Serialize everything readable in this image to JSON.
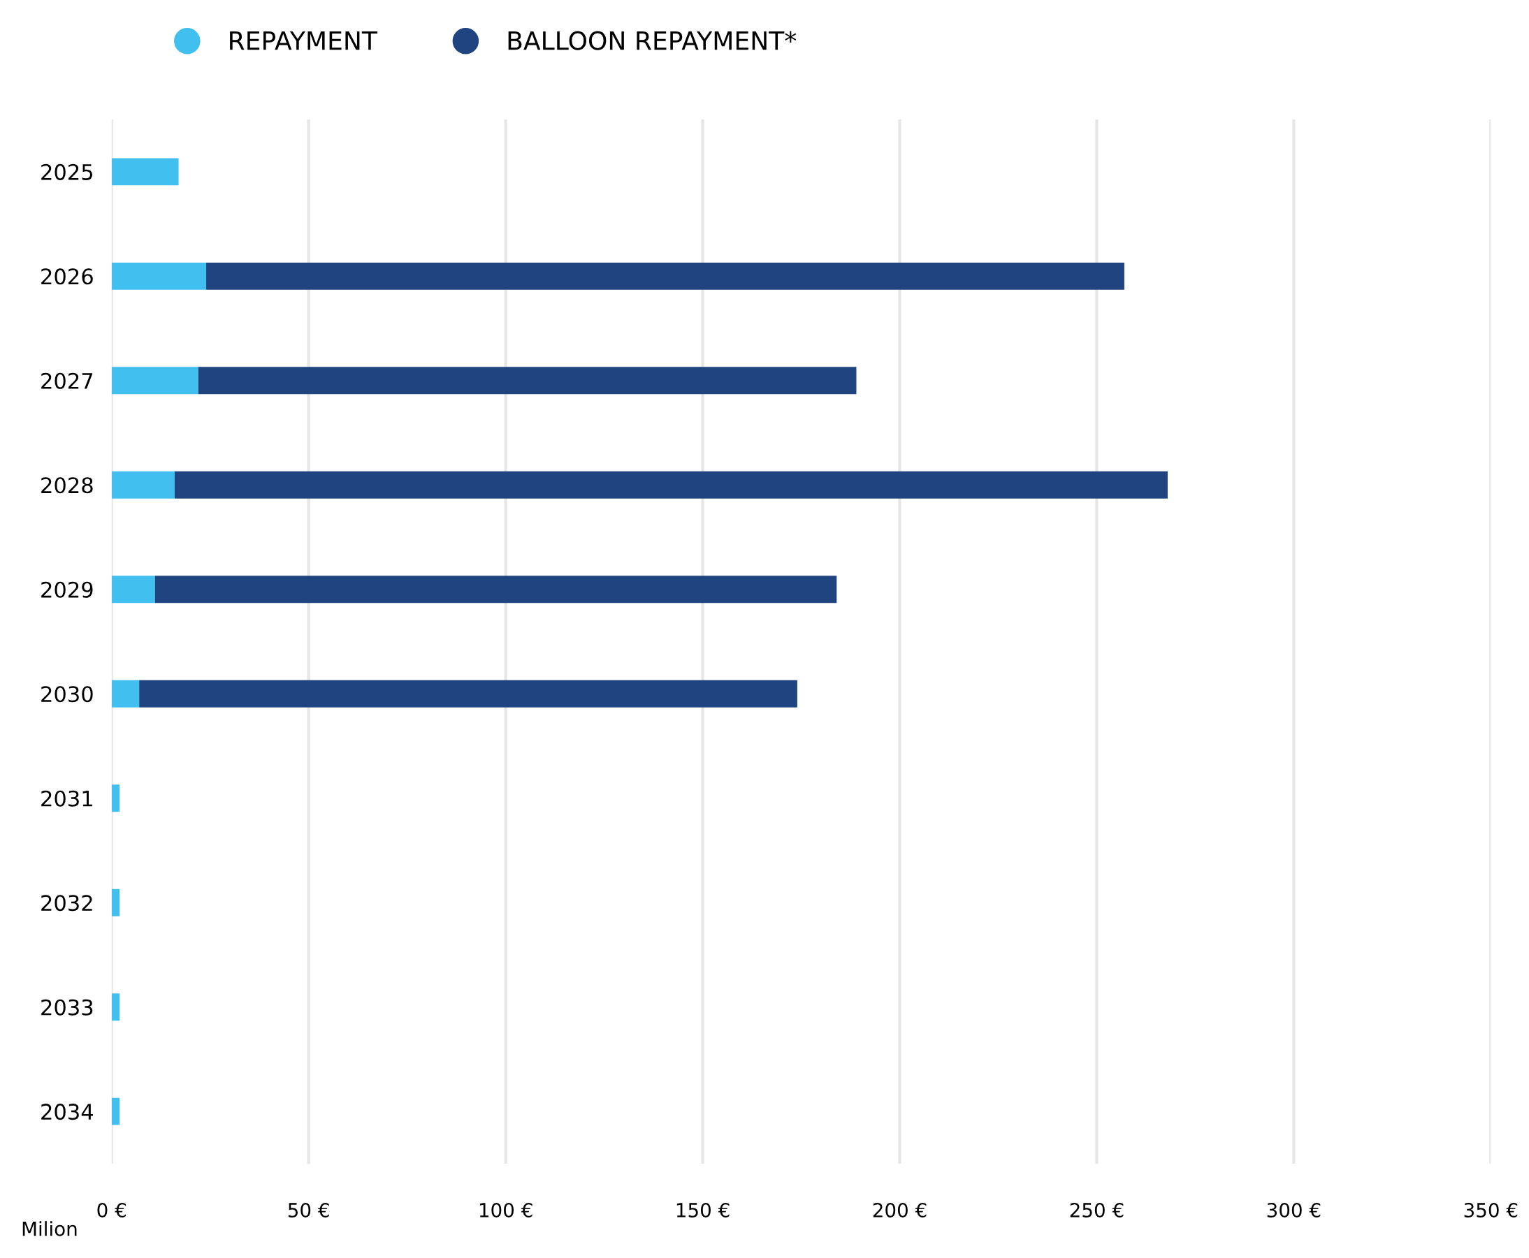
{
  "chart_data": {
    "type": "bar",
    "orientation": "horizontal",
    "stacked": true,
    "xlabel": "Milion",
    "categories": [
      "2025",
      "2026",
      "2027",
      "2028",
      "2029",
      "2030",
      "2031",
      "2032",
      "2033",
      "2034"
    ],
    "series": [
      {
        "name": "REPAYMENT",
        "color": "#41bfef",
        "values": [
          17,
          24,
          22,
          16,
          11,
          7,
          2,
          2,
          2,
          2
        ]
      },
      {
        "name": "BALLOON REPAYMENT*",
        "color": "#1f4480",
        "values": [
          null,
          233,
          167,
          252,
          173,
          167,
          null,
          null,
          null,
          null
        ]
      }
    ],
    "xlim": [
      0,
      350
    ],
    "xticks": [
      {
        "value": 0,
        "label": "0 €"
      },
      {
        "value": 50,
        "label": "50 €"
      },
      {
        "value": 100,
        "label": "100 €"
      },
      {
        "value": 150,
        "label": "150 €"
      },
      {
        "value": 200,
        "label": "200 €"
      },
      {
        "value": 250,
        "label": "250 €"
      },
      {
        "value": 300,
        "label": "300 €"
      },
      {
        "value": 350,
        "label": "350 €"
      }
    ],
    "grid": "x",
    "legend": "top left",
    "marker": "circle"
  }
}
